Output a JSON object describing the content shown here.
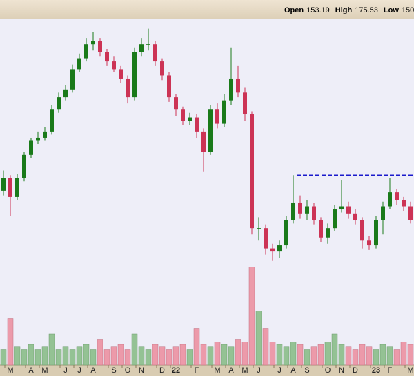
{
  "chart_data": {
    "type": "candlestick",
    "ohlc_header": [
      {
        "label": "Open",
        "value": "153.19"
      },
      {
        "label": "High",
        "value": "175.53"
      },
      {
        "label": "Low",
        "value": "150.0"
      }
    ],
    "categories": [
      null,
      "M",
      null,
      null,
      "A",
      null,
      "M",
      null,
      null,
      "J",
      null,
      "J",
      null,
      "A",
      null,
      null,
      "S",
      null,
      "O",
      null,
      "N",
      null,
      null,
      "D",
      null,
      "22",
      null,
      null,
      "F",
      null,
      null,
      "M",
      null,
      "A",
      null,
      "M",
      null,
      "J",
      null,
      null,
      "J",
      null,
      "A",
      null,
      "S",
      null,
      null,
      "O",
      null,
      "N",
      null,
      "D",
      null,
      null,
      "23",
      null,
      "F",
      null,
      null,
      "M"
    ],
    "open": [
      150,
      158,
      146,
      158,
      173,
      182,
      184,
      188,
      202,
      210,
      215,
      228,
      235,
      244,
      246,
      239,
      233,
      228,
      222,
      210,
      239,
      244,
      244,
      233,
      224,
      210,
      202,
      195,
      197,
      188,
      175,
      202,
      193,
      208,
      222,
      213,
      199,
      126,
      126,
      113,
      111,
      115,
      131,
      142,
      135,
      140,
      131,
      120,
      126,
      138,
      140,
      135,
      131,
      118,
      115,
      131,
      140,
      149,
      144,
      140
    ],
    "high": [
      163,
      160,
      161,
      175,
      184,
      188,
      191,
      205,
      213,
      218,
      231,
      238,
      248,
      252,
      248,
      241,
      236,
      230,
      224,
      242,
      248,
      254,
      246,
      235,
      226,
      212,
      204,
      200,
      199,
      190,
      205,
      206,
      212,
      242,
      230,
      216,
      201,
      133,
      128,
      116,
      118,
      134,
      160,
      147,
      144,
      142,
      133,
      129,
      141,
      157,
      143,
      138,
      133,
      121,
      134,
      143,
      158,
      151,
      146,
      143
    ],
    "low": [
      147,
      134,
      144,
      156,
      171,
      180,
      182,
      186,
      200,
      208,
      213,
      226,
      233,
      240,
      236,
      230,
      226,
      219,
      206,
      208,
      236,
      240,
      230,
      221,
      207,
      198,
      192,
      192,
      184,
      162,
      173,
      190,
      191,
      205,
      210,
      195,
      122,
      118,
      109,
      105,
      107,
      113,
      129,
      132,
      131,
      128,
      117,
      116,
      124,
      136,
      132,
      128,
      113,
      112,
      113,
      122,
      138,
      141,
      137,
      129
    ],
    "close": [
      158,
      146,
      158,
      173,
      182,
      184,
      188,
      202,
      210,
      215,
      228,
      235,
      244,
      246,
      239,
      233,
      228,
      222,
      210,
      239,
      244,
      244,
      233,
      224,
      210,
      202,
      195,
      197,
      188,
      175,
      202,
      193,
      208,
      222,
      213,
      199,
      126,
      126,
      113,
      111,
      115,
      131,
      142,
      135,
      140,
      131,
      120,
      126,
      138,
      140,
      135,
      131,
      118,
      115,
      131,
      140,
      149,
      144,
      140,
      131
    ],
    "volume": [
      6,
      18,
      7,
      6,
      8,
      6,
      7,
      12,
      6,
      7,
      6,
      7,
      8,
      6,
      10,
      6,
      7,
      8,
      6,
      12,
      7,
      6,
      8,
      7,
      6,
      7,
      8,
      6,
      14,
      8,
      7,
      9,
      8,
      7,
      10,
      9,
      38,
      21,
      14,
      9,
      8,
      7,
      9,
      8,
      6,
      7,
      8,
      9,
      12,
      8,
      7,
      6,
      8,
      7,
      6,
      8,
      7,
      6,
      9,
      8
    ],
    "ylim": [
      100,
      260
    ],
    "volume_ylim": [
      0,
      40
    ],
    "reference_line": {
      "value": 160,
      "color": "#1a1acc"
    },
    "up_color": "#1a7a1a",
    "down_color": "#cc3355",
    "volume_up_color": "#94c294",
    "volume_down_color": "#ec9aaa"
  }
}
